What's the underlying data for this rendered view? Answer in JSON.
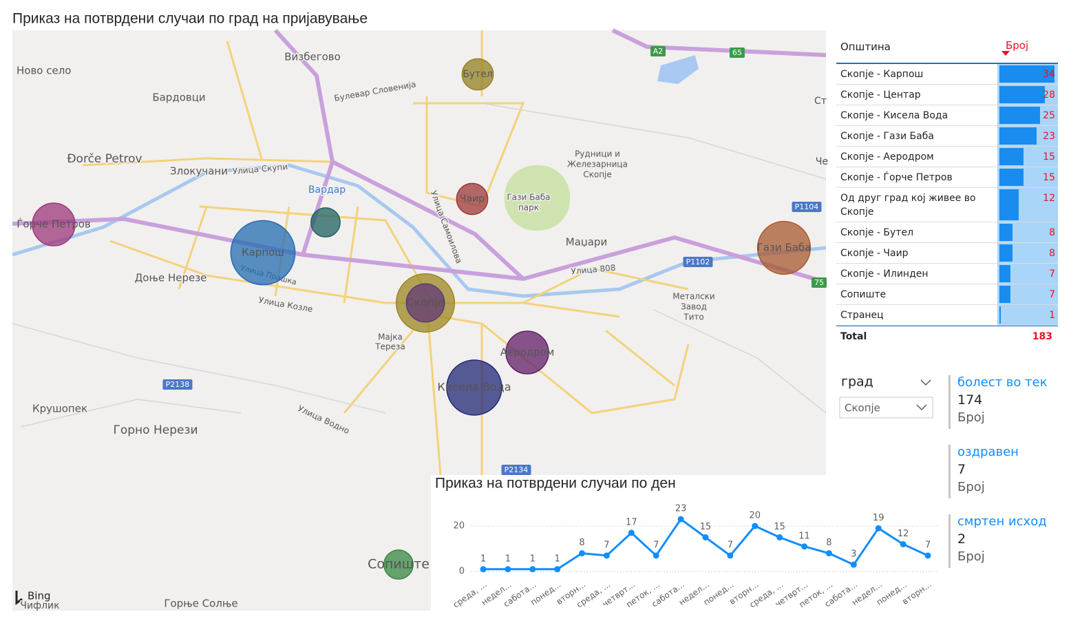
{
  "title": "Приказ на потврдени случаи по град на пријавување",
  "map": {
    "labels": [
      "Ново село",
      "Визбегово",
      "Бардовци",
      "Булевар Словенија",
      "Đorče Petrov",
      "Злокучани",
      "Улица Скупи",
      "Вардар",
      "Гази Баба",
      "парк",
      "Рудници и",
      "Железарница",
      "Скопје",
      "Маџари",
      "Улица 808",
      "Доње Нерезе",
      "Улица Самоилова",
      "Улица Прашка",
      "Улица Козле",
      "Металски",
      "Завод",
      "Тито",
      "Мајка",
      "Тереза",
      "Крушопек",
      "Горно Нерези",
      "Улица Водно",
      "Чифлик",
      "Горње Солње",
      "Ст",
      "Че"
    ],
    "shields": [
      "A2",
      "65",
      "P1104",
      "P1102",
      "75",
      "P2138",
      "P2134"
    ],
    "bubbles": {
      "labels": [
        "Карпош",
        null,
        "Скопје",
        "Кисела Вода",
        "Гази Баба",
        "Аеродром",
        "Ѓорче Петров",
        "Бутел",
        "Чаир",
        null,
        "Сопиште"
      ],
      "colors": [
        "#3399ff",
        "#e0c030",
        "#8b4fa8",
        "#2f3aa8",
        "#ee8044",
        "#8b2c96",
        "#e050b0",
        "#d6b830",
        "#e05050",
        "#2e8b8b",
        "#50c060"
      ]
    },
    "attribution": "Bing"
  },
  "table": {
    "headers": [
      "Општина",
      "Број"
    ],
    "rows": [
      [
        "Скопје - Карпош",
        34
      ],
      [
        "Скопје - Центар",
        28
      ],
      [
        "Скопје - Кисела Вода",
        25
      ],
      [
        "Скопје - Гази Баба",
        23
      ],
      [
        "Скопје - Аеродром",
        15
      ],
      [
        "Скопје - Ѓорче Петров",
        15
      ],
      [
        "Од друг град кој живее во Скопје",
        12
      ],
      [
        "Скопје - Бутел",
        8
      ],
      [
        "Скопје - Чаир",
        8
      ],
      [
        "Скопје - Илинден",
        7
      ],
      [
        "Сопиште",
        7
      ],
      [
        "Странец",
        1
      ]
    ],
    "total_label": "Total",
    "total": 183
  },
  "slicer": {
    "label": "град",
    "value": "Скопје"
  },
  "cards": [
    {
      "title": "болест во тек",
      "value": 174,
      "label": "Број"
    },
    {
      "title": "оздравен",
      "value": 7,
      "label": "Број"
    },
    {
      "title": "смртен исход",
      "value": 2,
      "label": "Број"
    }
  ],
  "chart_data": {
    "type": "line",
    "title": "Приказ на потврдени случаи по ден",
    "categories": [
      "среда, ...",
      "недел...",
      "сабота...",
      "понед...",
      "вторн...",
      "среда, ...",
      "четврт...",
      "петок, ...",
      "сабота...",
      "недел...",
      "понед...",
      "вторн...",
      "среда, ...",
      "четврт...",
      "петок, ...",
      "сабота...",
      "недел...",
      "понед...",
      "вторн..."
    ],
    "values": [
      1,
      1,
      1,
      1,
      8,
      7,
      17,
      7,
      23,
      15,
      7,
      20,
      15,
      11,
      8,
      3,
      19,
      12,
      7
    ],
    "color": "#118dff",
    "ylim": [
      -3,
      25
    ],
    "yticks": [
      0,
      20
    ],
    "grid": true
  }
}
